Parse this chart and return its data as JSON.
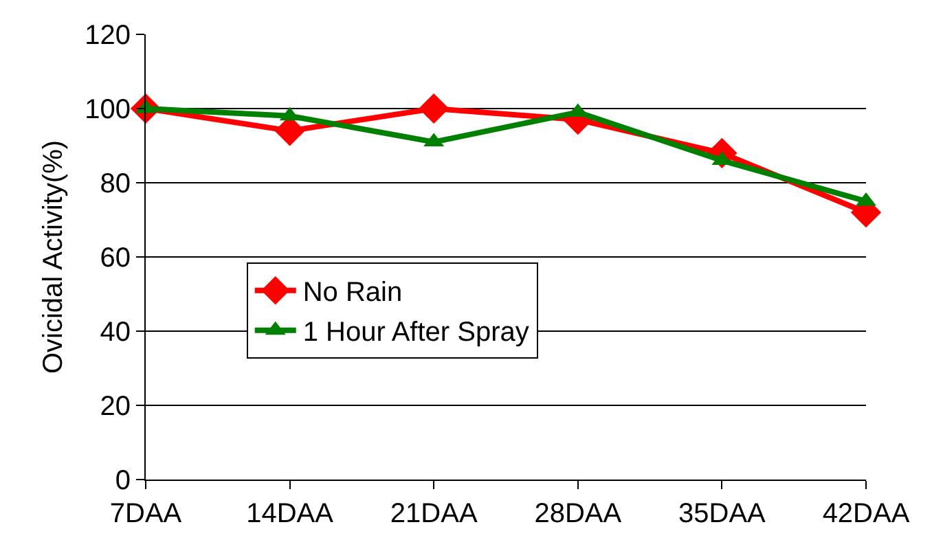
{
  "chart_data": {
    "type": "line",
    "ylabel": "Ovicidal Activity(%)",
    "categories": [
      "7DAA",
      "14DAA",
      "21DAA",
      "28DAA",
      "35DAA",
      "42DAA"
    ],
    "series": [
      {
        "name": "No Rain",
        "color": "#ff0000",
        "marker": "diamond",
        "values": [
          100,
          94,
          100,
          97,
          88,
          72
        ]
      },
      {
        "name": "1 Hour After Spray",
        "color": "#008000",
        "marker": "triangle",
        "values": [
          100,
          98,
          91,
          99,
          86,
          75
        ]
      }
    ],
    "ylim": [
      0,
      120
    ],
    "yticks": [
      0,
      20,
      40,
      60,
      80,
      100,
      120
    ],
    "grid": "y",
    "legend": "center left",
    "line_style": "solid"
  }
}
